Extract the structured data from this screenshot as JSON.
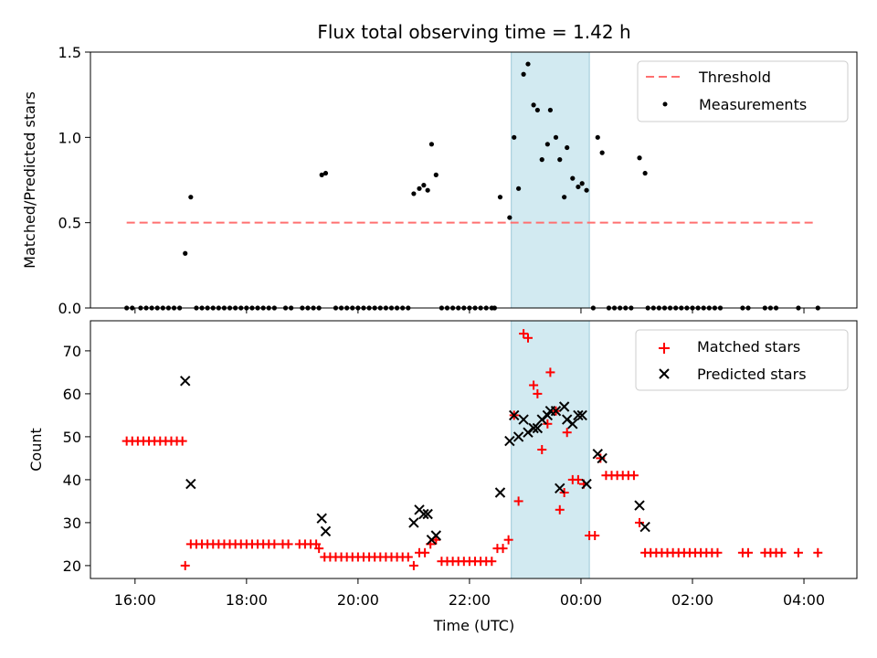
{
  "chart_data": [
    {
      "type": "scatter",
      "title": "Flux total observing time = 1.42 h",
      "xlabel": "",
      "ylabel": "Matched/Predicted stars",
      "xlim": [
        15.2,
        28.95
      ],
      "ylim": [
        0,
        1.5
      ],
      "yticks": [
        0,
        0.5,
        1.0,
        1.5
      ],
      "ytick_labels": [
        "0.0",
        "0.5",
        "1.0",
        "1.5"
      ],
      "xticks": [
        16,
        18,
        20,
        22,
        24,
        26,
        28
      ],
      "shaded_region": {
        "start": 22.75,
        "end": 24.15,
        "color": "#add8e6"
      },
      "threshold": {
        "value": 0.5,
        "start": 15.85,
        "end": 28.2,
        "color": "#ff6b6b"
      },
      "legend": {
        "position": "top-right",
        "entries": [
          "Threshold",
          "Measurements"
        ]
      },
      "series": [
        {
          "name": "Measurements",
          "color": "#000000",
          "points": [
            [
              15.85,
              0
            ],
            [
              15.95,
              0
            ],
            [
              16.1,
              0
            ],
            [
              16.2,
              0
            ],
            [
              16.3,
              0
            ],
            [
              16.4,
              0
            ],
            [
              16.5,
              0
            ],
            [
              16.6,
              0
            ],
            [
              16.7,
              0
            ],
            [
              16.8,
              0
            ],
            [
              16.9,
              0.32
            ],
            [
              17.0,
              0.65
            ],
            [
              17.1,
              0
            ],
            [
              17.2,
              0
            ],
            [
              17.3,
              0
            ],
            [
              17.4,
              0
            ],
            [
              17.5,
              0
            ],
            [
              17.6,
              0
            ],
            [
              17.7,
              0
            ],
            [
              17.8,
              0
            ],
            [
              17.9,
              0
            ],
            [
              18.0,
              0
            ],
            [
              18.1,
              0
            ],
            [
              18.2,
              0
            ],
            [
              18.3,
              0
            ],
            [
              18.4,
              0
            ],
            [
              18.5,
              0
            ],
            [
              18.7,
              0
            ],
            [
              18.8,
              0
            ],
            [
              19.0,
              0
            ],
            [
              19.1,
              0
            ],
            [
              19.2,
              0
            ],
            [
              19.3,
              0
            ],
            [
              19.35,
              0.78
            ],
            [
              19.42,
              0.79
            ],
            [
              19.6,
              0
            ],
            [
              19.7,
              0
            ],
            [
              19.8,
              0
            ],
            [
              19.9,
              0
            ],
            [
              20.0,
              0
            ],
            [
              20.1,
              0
            ],
            [
              20.2,
              0
            ],
            [
              20.3,
              0
            ],
            [
              20.4,
              0
            ],
            [
              20.5,
              0
            ],
            [
              20.6,
              0
            ],
            [
              20.7,
              0
            ],
            [
              20.8,
              0
            ],
            [
              20.9,
              0
            ],
            [
              21.0,
              0.67
            ],
            [
              21.1,
              0.7
            ],
            [
              21.18,
              0.72
            ],
            [
              21.25,
              0.69
            ],
            [
              21.32,
              0.96
            ],
            [
              21.4,
              0.78
            ],
            [
              21.5,
              0
            ],
            [
              21.6,
              0
            ],
            [
              21.7,
              0
            ],
            [
              21.8,
              0
            ],
            [
              21.9,
              0
            ],
            [
              22.0,
              0
            ],
            [
              22.1,
              0
            ],
            [
              22.2,
              0
            ],
            [
              22.3,
              0
            ],
            [
              22.4,
              0
            ],
            [
              22.45,
              0
            ],
            [
              22.55,
              0.65
            ],
            [
              22.72,
              0.53
            ],
            [
              22.8,
              1.0
            ],
            [
              22.88,
              0.7
            ],
            [
              22.97,
              1.37
            ],
            [
              23.05,
              1.43
            ],
            [
              23.15,
              1.19
            ],
            [
              23.22,
              1.16
            ],
            [
              23.3,
              0.87
            ],
            [
              23.4,
              0.96
            ],
            [
              23.45,
              1.16
            ],
            [
              23.55,
              1.0
            ],
            [
              23.62,
              0.87
            ],
            [
              23.7,
              0.65
            ],
            [
              23.75,
              0.94
            ],
            [
              23.85,
              0.76
            ],
            [
              23.95,
              0.71
            ],
            [
              24.02,
              0.73
            ],
            [
              24.1,
              0.69
            ],
            [
              24.22,
              0
            ],
            [
              24.3,
              1.0
            ],
            [
              24.38,
              0.91
            ],
            [
              24.5,
              0
            ],
            [
              24.6,
              0
            ],
            [
              24.7,
              0
            ],
            [
              24.8,
              0
            ],
            [
              24.9,
              0
            ],
            [
              25.05,
              0.88
            ],
            [
              25.15,
              0.79
            ],
            [
              25.2,
              0
            ],
            [
              25.3,
              0
            ],
            [
              25.4,
              0
            ],
            [
              25.5,
              0
            ],
            [
              25.6,
              0
            ],
            [
              25.7,
              0
            ],
            [
              25.8,
              0
            ],
            [
              25.9,
              0
            ],
            [
              26.0,
              0
            ],
            [
              26.1,
              0
            ],
            [
              26.2,
              0
            ],
            [
              26.3,
              0
            ],
            [
              26.4,
              0
            ],
            [
              26.5,
              0
            ],
            [
              26.9,
              0
            ],
            [
              27.0,
              0
            ],
            [
              27.3,
              0
            ],
            [
              27.4,
              0
            ],
            [
              27.5,
              0
            ],
            [
              27.9,
              0
            ],
            [
              28.25,
              0
            ]
          ]
        }
      ]
    },
    {
      "type": "scatter",
      "title": "",
      "xlabel": "Time (UTC)",
      "ylabel": "Count",
      "xlim": [
        15.2,
        28.95
      ],
      "ylim": [
        17,
        77
      ],
      "yticks": [
        20,
        30,
        40,
        50,
        60,
        70
      ],
      "ytick_labels": [
        "20",
        "30",
        "40",
        "50",
        "60",
        "70"
      ],
      "xticks": [
        16,
        18,
        20,
        22,
        24,
        26,
        28
      ],
      "xtick_labels": [
        "16:00",
        "18:00",
        "20:00",
        "22:00",
        "00:00",
        "02:00",
        "04:00"
      ],
      "shaded_region": {
        "start": 22.75,
        "end": 24.15,
        "color": "#add8e6"
      },
      "legend": {
        "position": "top-right",
        "entries": [
          "Matched stars",
          "Predicted stars"
        ]
      },
      "series": [
        {
          "name": "Matched stars",
          "marker": "plus",
          "color": "#ff0000",
          "points": [
            [
              15.85,
              49
            ],
            [
              15.95,
              49
            ],
            [
              16.05,
              49
            ],
            [
              16.15,
              49
            ],
            [
              16.25,
              49
            ],
            [
              16.35,
              49
            ],
            [
              16.45,
              49
            ],
            [
              16.55,
              49
            ],
            [
              16.65,
              49
            ],
            [
              16.75,
              49
            ],
            [
              16.85,
              49
            ],
            [
              16.9,
              20
            ],
            [
              17.0,
              25
            ],
            [
              17.1,
              25
            ],
            [
              17.2,
              25
            ],
            [
              17.3,
              25
            ],
            [
              17.4,
              25
            ],
            [
              17.5,
              25
            ],
            [
              17.6,
              25
            ],
            [
              17.7,
              25
            ],
            [
              17.8,
              25
            ],
            [
              17.9,
              25
            ],
            [
              18.0,
              25
            ],
            [
              18.1,
              25
            ],
            [
              18.2,
              25
            ],
            [
              18.3,
              25
            ],
            [
              18.4,
              25
            ],
            [
              18.5,
              25
            ],
            [
              18.65,
              25
            ],
            [
              18.75,
              25
            ],
            [
              18.95,
              25
            ],
            [
              19.05,
              25
            ],
            [
              19.15,
              25
            ],
            [
              19.25,
              25
            ],
            [
              19.3,
              24
            ],
            [
              19.4,
              22
            ],
            [
              19.5,
              22
            ],
            [
              19.6,
              22
            ],
            [
              19.7,
              22
            ],
            [
              19.8,
              22
            ],
            [
              19.9,
              22
            ],
            [
              20.0,
              22
            ],
            [
              20.1,
              22
            ],
            [
              20.2,
              22
            ],
            [
              20.3,
              22
            ],
            [
              20.4,
              22
            ],
            [
              20.5,
              22
            ],
            [
              20.6,
              22
            ],
            [
              20.7,
              22
            ],
            [
              20.8,
              22
            ],
            [
              20.9,
              22
            ],
            [
              21.0,
              20
            ],
            [
              21.1,
              23
            ],
            [
              21.2,
              23
            ],
            [
              21.3,
              25
            ],
            [
              21.4,
              26
            ],
            [
              21.5,
              21
            ],
            [
              21.6,
              21
            ],
            [
              21.7,
              21
            ],
            [
              21.8,
              21
            ],
            [
              21.9,
              21
            ],
            [
              22.0,
              21
            ],
            [
              22.1,
              21
            ],
            [
              22.2,
              21
            ],
            [
              22.3,
              21
            ],
            [
              22.4,
              21
            ],
            [
              22.5,
              24
            ],
            [
              22.6,
              24
            ],
            [
              22.7,
              26
            ],
            [
              22.8,
              55
            ],
            [
              22.88,
              35
            ],
            [
              22.97,
              74
            ],
            [
              23.05,
              73
            ],
            [
              23.15,
              62
            ],
            [
              23.22,
              60
            ],
            [
              23.3,
              47
            ],
            [
              23.4,
              53
            ],
            [
              23.45,
              65
            ],
            [
              23.55,
              56
            ],
            [
              23.62,
              33
            ],
            [
              23.7,
              37
            ],
            [
              23.75,
              51
            ],
            [
              23.85,
              40
            ],
            [
              23.95,
              40
            ],
            [
              24.05,
              39
            ],
            [
              24.15,
              27
            ],
            [
              24.25,
              27
            ],
            [
              24.35,
              45
            ],
            [
              24.45,
              41
            ],
            [
              24.55,
              41
            ],
            [
              24.65,
              41
            ],
            [
              24.75,
              41
            ],
            [
              24.85,
              41
            ],
            [
              24.95,
              41
            ],
            [
              25.05,
              30
            ],
            [
              25.15,
              23
            ],
            [
              25.25,
              23
            ],
            [
              25.35,
              23
            ],
            [
              25.45,
              23
            ],
            [
              25.55,
              23
            ],
            [
              25.65,
              23
            ],
            [
              25.75,
              23
            ],
            [
              25.85,
              23
            ],
            [
              25.95,
              23
            ],
            [
              26.05,
              23
            ],
            [
              26.15,
              23
            ],
            [
              26.25,
              23
            ],
            [
              26.35,
              23
            ],
            [
              26.45,
              23
            ],
            [
              26.9,
              23
            ],
            [
              27.0,
              23
            ],
            [
              27.3,
              23
            ],
            [
              27.4,
              23
            ],
            [
              27.5,
              23
            ],
            [
              27.6,
              23
            ],
            [
              27.9,
              23
            ],
            [
              28.25,
              23
            ]
          ]
        },
        {
          "name": "Predicted stars",
          "marker": "x",
          "color": "#000000",
          "points": [
            [
              16.9,
              63
            ],
            [
              17.0,
              39
            ],
            [
              19.35,
              31
            ],
            [
              19.42,
              28
            ],
            [
              21.0,
              30
            ],
            [
              21.1,
              33
            ],
            [
              21.18,
              32
            ],
            [
              21.25,
              32
            ],
            [
              21.32,
              26
            ],
            [
              21.4,
              27
            ],
            [
              22.55,
              37
            ],
            [
              22.72,
              49
            ],
            [
              22.8,
              55
            ],
            [
              22.88,
              50
            ],
            [
              22.97,
              54
            ],
            [
              23.05,
              51
            ],
            [
              23.15,
              52
            ],
            [
              23.22,
              52
            ],
            [
              23.3,
              54
            ],
            [
              23.4,
              55
            ],
            [
              23.45,
              56
            ],
            [
              23.55,
              56
            ],
            [
              23.62,
              38
            ],
            [
              23.7,
              57
            ],
            [
              23.75,
              54
            ],
            [
              23.85,
              53
            ],
            [
              23.95,
              55
            ],
            [
              24.02,
              55
            ],
            [
              24.1,
              39
            ],
            [
              24.3,
              46
            ],
            [
              24.38,
              45
            ],
            [
              25.05,
              34
            ],
            [
              25.15,
              29
            ]
          ]
        }
      ]
    }
  ]
}
